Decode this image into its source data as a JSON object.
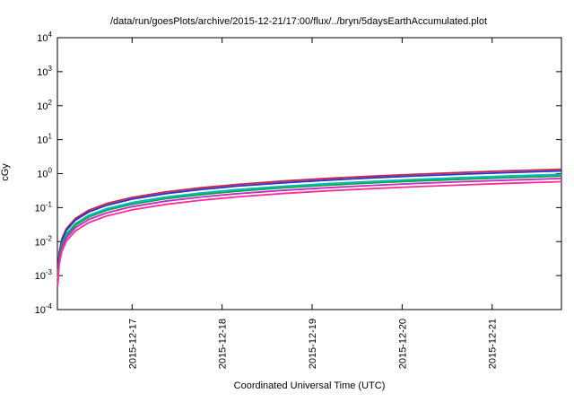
{
  "chart_data": {
    "type": "line",
    "title": "/data/run/goesPlots/archive/2015-12-21/17:00/flux/../bryn/5daysEarthAccumulated.plot",
    "xlabel": "Coordinated Universal Time (UTC)",
    "ylabel": "cGy",
    "y_scale": "log10",
    "y_exponent_range": [
      -4,
      4
    ],
    "y_tick_exponents": [
      -4,
      -3,
      -2,
      -1,
      0,
      1,
      2,
      3,
      4
    ],
    "y_tick_base": "10",
    "x_range_days": [
      0,
      5.6
    ],
    "x_ticks": [
      {
        "t": 0.83,
        "label": "2015-12-17"
      },
      {
        "t": 1.83,
        "label": "2015-12-18"
      },
      {
        "t": 2.83,
        "label": "2015-12-19"
      },
      {
        "t": 3.83,
        "label": "2015-12-20"
      },
      {
        "t": 4.83,
        "label": "2015-12-21"
      }
    ],
    "grid": false,
    "legend": "none",
    "line_width": 1.8,
    "x_samples_days": [
      0.005,
      0.02,
      0.05,
      0.1,
      0.2,
      0.35,
      0.55,
      0.83,
      1.2,
      1.6,
      2.0,
      2.5,
      3.0,
      3.5,
      4.0,
      4.5,
      5.0,
      5.6
    ],
    "series": [
      {
        "color": "#cc2244",
        "end_cGy": 1.35,
        "values": [
          0.0012,
          0.0048,
          0.0121,
          0.0241,
          0.0482,
          0.0844,
          0.1326,
          0.2001,
          0.2893,
          0.3857,
          0.4821,
          0.6027,
          0.7232,
          0.8438,
          0.9643,
          1.0848,
          1.2054,
          1.35
        ]
      },
      {
        "color": "#2233cc",
        "end_cGy": 1.2,
        "values": [
          0.0011,
          0.0043,
          0.0107,
          0.0214,
          0.0429,
          0.075,
          0.1179,
          0.1779,
          0.2571,
          0.3429,
          0.4286,
          0.5357,
          0.6429,
          0.75,
          0.8571,
          0.9643,
          1.0714,
          1.2
        ]
      },
      {
        "color": "#00b8b8",
        "end_cGy": 0.95,
        "values": [
          0.0008,
          0.0034,
          0.0085,
          0.017,
          0.0339,
          0.0594,
          0.0933,
          0.1408,
          0.2036,
          0.2714,
          0.3393,
          0.4241,
          0.5089,
          0.5938,
          0.6786,
          0.7634,
          0.8482,
          0.95
        ]
      },
      {
        "color": "#00a944",
        "end_cGy": 0.85,
        "values": [
          0.0008,
          0.003,
          0.0076,
          0.0152,
          0.0304,
          0.0531,
          0.0835,
          0.126,
          0.1821,
          0.2429,
          0.3036,
          0.3795,
          0.4554,
          0.5313,
          0.6071,
          0.683,
          0.7589,
          0.85
        ]
      },
      {
        "color": "#cc22cc",
        "end_cGy": 0.72,
        "values": [
          0.0006,
          0.0026,
          0.0064,
          0.0129,
          0.0257,
          0.045,
          0.0707,
          0.1067,
          0.1543,
          0.2057,
          0.2571,
          0.3214,
          0.3857,
          0.45,
          0.5143,
          0.5786,
          0.6429,
          0.72
        ]
      },
      {
        "color": "#ff2d92",
        "end_cGy": 0.58,
        "values": [
          0.0005,
          0.0021,
          0.0052,
          0.0104,
          0.0207,
          0.0363,
          0.057,
          0.086,
          0.1243,
          0.1657,
          0.2071,
          0.2589,
          0.3107,
          0.3625,
          0.4143,
          0.4657,
          0.5171,
          0.58
        ]
      }
    ]
  }
}
